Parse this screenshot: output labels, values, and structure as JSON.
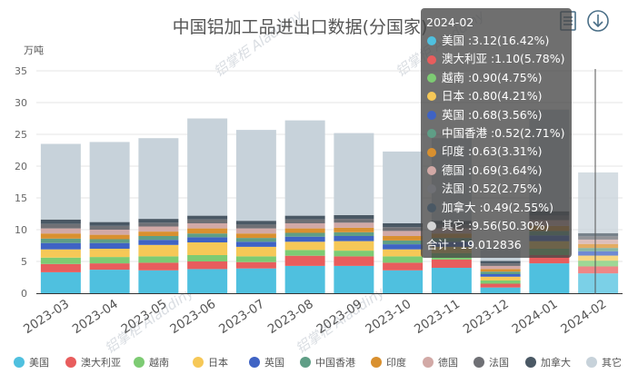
{
  "title": "中国铝加工品进出口数据(分国家)",
  "unit": "万吨",
  "watermark": "铝掌柜 Aladdiny",
  "toolbar": {
    "data_view_icon": "document-icon",
    "download_icon": "download-icon"
  },
  "chart_data": {
    "type": "bar",
    "stacked": true,
    "ylim": [
      0,
      35
    ],
    "yticks": [
      0,
      5,
      10,
      15,
      20,
      25,
      30,
      35
    ],
    "grid": true,
    "legend_position": "bottom",
    "categories": [
      "2023-03",
      "2023-04",
      "2023-05",
      "2023-06",
      "2023-07",
      "2023-08",
      "2023-09",
      "2023-10",
      "2023-11",
      "2023-12",
      "2024-01",
      "2024-02"
    ],
    "series": [
      {
        "name": "美国",
        "color": "#4fc0df",
        "values": [
          3.3,
          3.7,
          3.6,
          3.8,
          3.9,
          4.3,
          4.3,
          3.6,
          4.0,
          0.9,
          4.7,
          3.12
        ]
      },
      {
        "name": "澳大利亚",
        "color": "#e85d5d",
        "values": [
          1.3,
          1.0,
          1.2,
          1.2,
          1.0,
          1.6,
          1.5,
          1.2,
          1.3,
          0.6,
          1.3,
          1.1
        ]
      },
      {
        "name": "越南",
        "color": "#7dcb73",
        "values": [
          1.0,
          1.0,
          1.0,
          1.0,
          0.9,
          0.9,
          0.9,
          1.0,
          1.0,
          0.5,
          1.0,
          0.9
        ]
      },
      {
        "name": "日本",
        "color": "#f6c857",
        "values": [
          1.3,
          1.3,
          1.8,
          2.0,
          1.5,
          1.3,
          1.5,
          1.1,
          1.0,
          0.6,
          1.2,
          0.8
        ]
      },
      {
        "name": "英国",
        "color": "#3f63c4",
        "values": [
          1.0,
          0.9,
          0.8,
          0.8,
          0.8,
          0.8,
          0.8,
          0.8,
          0.8,
          0.4,
          0.9,
          0.68
        ]
      },
      {
        "name": "中国香港",
        "color": "#5f9e86",
        "values": [
          0.7,
          0.6,
          0.6,
          0.6,
          0.6,
          0.6,
          0.6,
          0.6,
          0.6,
          0.4,
          0.7,
          0.52
        ]
      },
      {
        "name": "印度",
        "color": "#d9902f",
        "values": [
          0.8,
          0.7,
          0.7,
          0.8,
          0.7,
          0.7,
          0.7,
          0.7,
          0.7,
          0.4,
          0.8,
          0.63
        ]
      },
      {
        "name": "德国",
        "color": "#d2a9a6",
        "values": [
          0.8,
          0.8,
          0.8,
          0.8,
          0.8,
          0.8,
          0.8,
          0.8,
          0.8,
          0.5,
          0.9,
          0.69
        ]
      },
      {
        "name": "法国",
        "color": "#6f7075",
        "values": [
          0.7,
          0.6,
          0.6,
          0.6,
          0.6,
          0.6,
          0.6,
          0.6,
          0.6,
          0.4,
          0.7,
          0.52
        ]
      },
      {
        "name": "加拿大",
        "color": "#4a5864",
        "values": [
          0.7,
          0.6,
          0.6,
          0.6,
          0.6,
          0.6,
          0.6,
          0.6,
          0.6,
          0.4,
          0.7,
          0.49
        ]
      },
      {
        "name": "其它",
        "color": "#c7d2da",
        "values": [
          11.9,
          12.6,
          12.7,
          15.3,
          14.3,
          15.0,
          12.9,
          11.3,
          13.0,
          2.0,
          16.0,
          9.56
        ]
      }
    ]
  },
  "tooltip": {
    "title": "2024-02",
    "rows": [
      {
        "color": "#4fc0df",
        "text": "美国 :3.12(16.42%)"
      },
      {
        "color": "#e85d5d",
        "text": "澳大利亚 :1.10(5.78%)"
      },
      {
        "color": "#7dcb73",
        "text": "越南 :0.90(4.75%)"
      },
      {
        "color": "#f6c857",
        "text": "日本 :0.80(4.21%)"
      },
      {
        "color": "#3f63c4",
        "text": "英国 :0.68(3.56%)"
      },
      {
        "color": "#5f9e86",
        "text": "中国香港 :0.52(2.71%)"
      },
      {
        "color": "#d9902f",
        "text": "印度 :0.63(3.31%)"
      },
      {
        "color": "#d2a9a6",
        "text": "德国 :0.69(3.64%)"
      },
      {
        "color": "#6f7075",
        "text": "法国 :0.52(2.75%)"
      },
      {
        "color": "#4a5864",
        "text": "加拿大 :0.49(2.55%)"
      },
      {
        "color": "#d5d5d5",
        "text": "其它 :9.56(50.30%)"
      }
    ],
    "total": "合计 : 19.012836"
  }
}
